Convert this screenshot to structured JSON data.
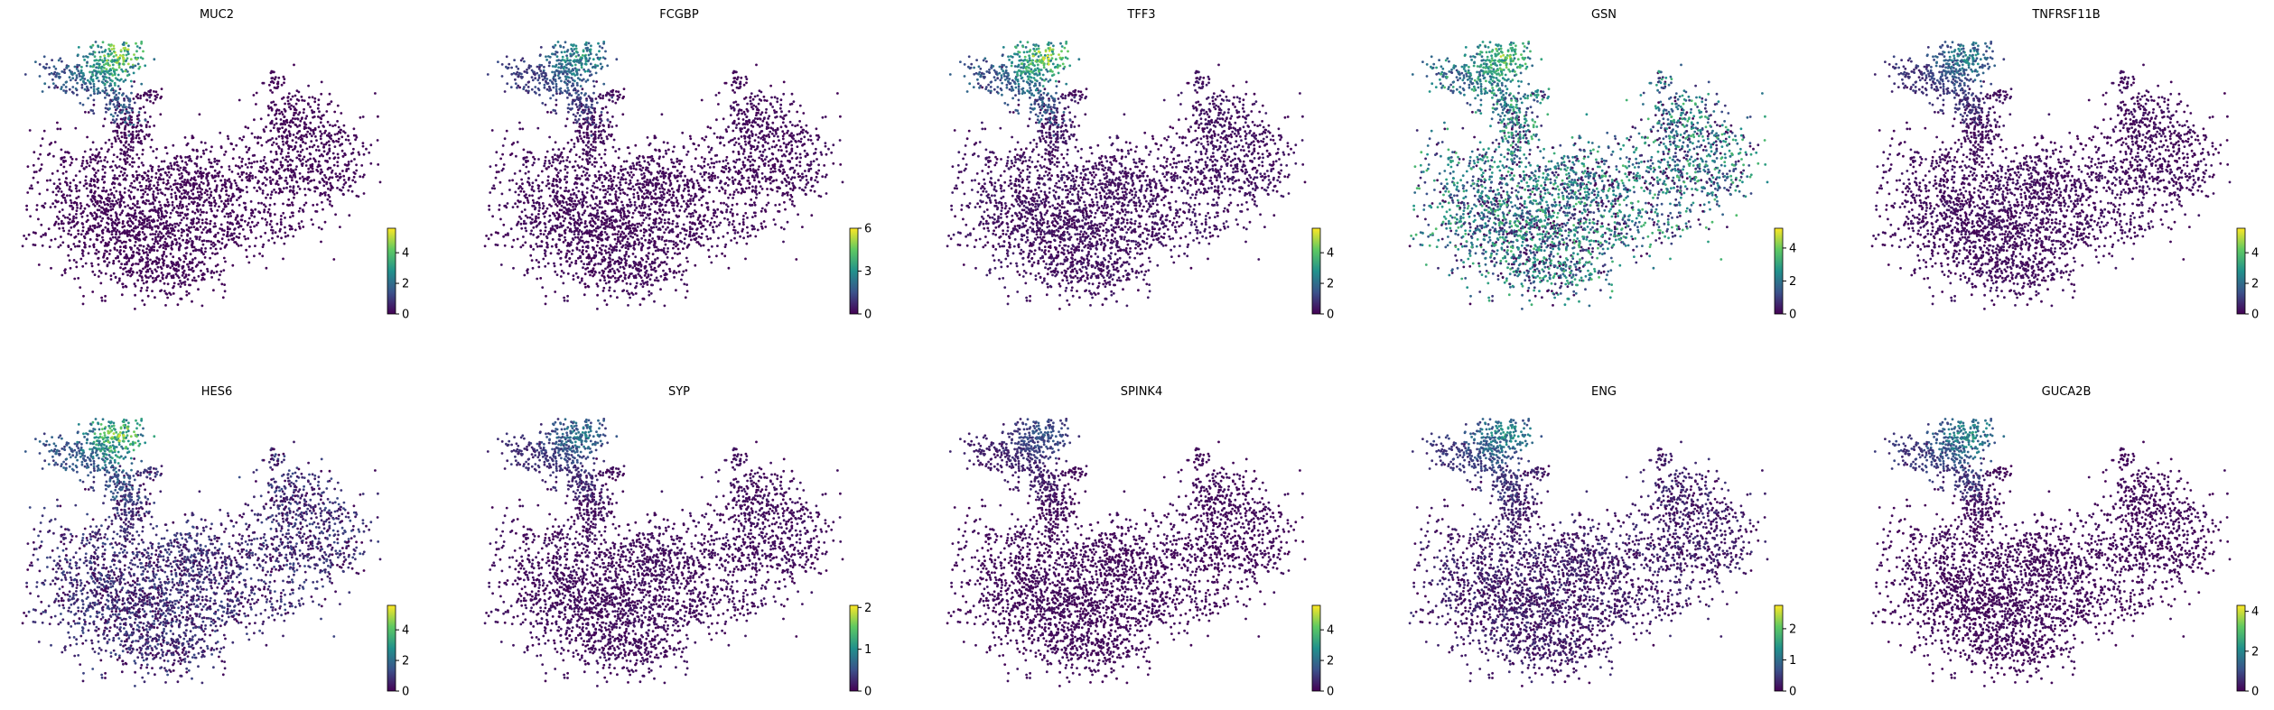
{
  "chart_data": {
    "type": "scatter",
    "layout": {
      "rows": 2,
      "cols": 5
    },
    "colormap": [
      "#440154",
      "#3b528b",
      "#21918c",
      "#5ec962",
      "#fde725"
    ],
    "background_point_color": "#440154",
    "legend": "colorbar per panel, bottom-right",
    "grid": false,
    "axes_visible": false,
    "panels": [
      {
        "title": "MUC2",
        "colorbar": {
          "min": 0,
          "max": 5.6,
          "ticks": [
            0,
            2,
            4
          ]
        },
        "hotspot": "upper-arm",
        "hot_level": 0.9,
        "base_level": 0.02
      },
      {
        "title": "FCGBP",
        "colorbar": {
          "min": 0,
          "max": 6,
          "ticks": [
            0,
            3,
            6
          ]
        },
        "hotspot": "upper-arm",
        "hot_level": 0.6,
        "base_level": 0.03
      },
      {
        "title": "TFF3",
        "colorbar": {
          "min": 0,
          "max": 5.6,
          "ticks": [
            0,
            2,
            4
          ]
        },
        "hotspot": "upper-arm",
        "hot_level": 0.9,
        "base_level": 0.05
      },
      {
        "title": "GSN",
        "colorbar": {
          "min": 0,
          "max": 5.2,
          "ticks": [
            0,
            2,
            4
          ]
        },
        "hotspot": "upper-arm",
        "hot_level": 0.85,
        "base_level": 0.35
      },
      {
        "title": "TNFRSF11B",
        "colorbar": {
          "min": 0,
          "max": 5.6,
          "ticks": [
            0,
            2,
            4
          ]
        },
        "hotspot": "upper-arm",
        "hot_level": 0.5,
        "base_level": 0.04
      },
      {
        "title": "HES6",
        "colorbar": {
          "min": 0,
          "max": 5.6,
          "ticks": [
            0,
            2,
            4
          ]
        },
        "hotspot": "upper-arm",
        "hot_level": 0.85,
        "base_level": 0.12
      },
      {
        "title": "SYP",
        "colorbar": {
          "min": 0,
          "max": 2.05,
          "ticks": [
            0,
            1,
            2
          ]
        },
        "hotspot": "upper-arm",
        "hot_level": 0.45,
        "base_level": 0.04
      },
      {
        "title": "SPINK4",
        "colorbar": {
          "min": 0,
          "max": 5.6,
          "ticks": [
            0,
            2,
            4
          ]
        },
        "hotspot": "upper-arm",
        "hot_level": 0.3,
        "base_level": 0.03
      },
      {
        "title": "ENG",
        "colorbar": {
          "min": 0,
          "max": 2.75,
          "ticks": [
            0,
            1,
            2
          ]
        },
        "hotspot": "upper-arm",
        "hot_level": 0.55,
        "base_level": 0.08
      },
      {
        "title": "GUCA2B",
        "colorbar": {
          "min": 0,
          "max": 4.3,
          "ticks": [
            0,
            2,
            4
          ]
        },
        "hotspot": "upper-arm",
        "hot_level": 0.55,
        "base_level": 0.03
      }
    ]
  }
}
